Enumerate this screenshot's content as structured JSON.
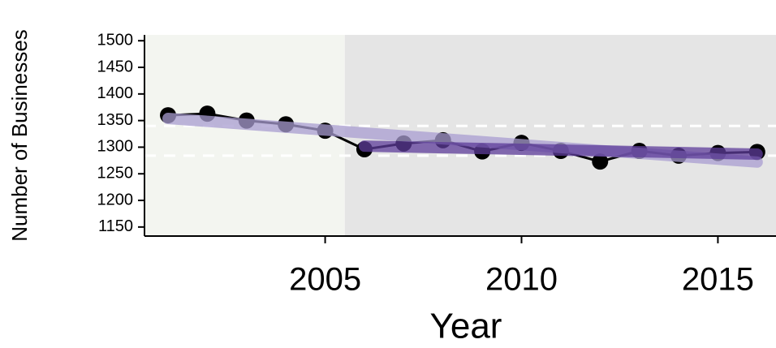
{
  "chart_data": {
    "type": "line",
    "x_label": "Year",
    "y_label": "Number of Businesses",
    "x": [
      2001,
      2002,
      2003,
      2004,
      2005,
      2006,
      2007,
      2008,
      2009,
      2010,
      2011,
      2012,
      2013,
      2014,
      2015,
      2016
    ],
    "series": [
      {
        "color": "#000000",
        "values": [
          1360,
          1363,
          1350,
          1343,
          1331,
          1296,
          1307,
          1313,
          1292,
          1308,
          1293,
          1273,
          1293,
          1284,
          1289,
          1291
        ]
      },
      {
        "color": "#a89cd0",
        "x": [
          2001,
          2016
        ],
        "values": [
          1354,
          1272
        ]
      },
      {
        "color": "#5e3c99",
        "x": [
          2006,
          2016
        ],
        "values": [
          1302,
          1287
        ]
      }
    ],
    "shading": [
      {
        "xlim": [
          2000.4,
          2005.5
        ],
        "color": "#f3f5f0"
      },
      {
        "xlim": [
          2005.5,
          2016.5
        ],
        "color": "#e5e5e5"
      }
    ],
    "hlines": [
      1340,
      1284
    ],
    "xlim": [
      2000.4,
      2016.5
    ],
    "ylim": [
      1133,
      1511
    ],
    "xticks": [
      2005,
      2010,
      2015
    ],
    "yticks": [
      1150,
      1200,
      1250,
      1300,
      1350,
      1400,
      1450,
      1500
    ]
  }
}
